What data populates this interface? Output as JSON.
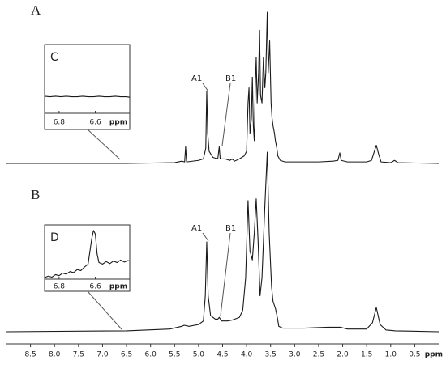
{
  "chart_data": [
    {
      "type": "line",
      "label": "A",
      "annotations": [
        "A1",
        "B1"
      ],
      "color": "#1a1a1a",
      "xlim": [
        9,
        0
      ],
      "ylim": [
        0,
        100
      ],
      "x": [
        9.0,
        6.5,
        5.5,
        5.35,
        5.29,
        5.27,
        5.25,
        5.0,
        4.9,
        4.85,
        4.83,
        4.81,
        4.78,
        4.7,
        4.6,
        4.57,
        4.55,
        4.45,
        4.35,
        4.3,
        4.25,
        4.15,
        4.05,
        4.0,
        3.97,
        3.95,
        3.93,
        3.9,
        3.88,
        3.86,
        3.84,
        3.82,
        3.8,
        3.78,
        3.75,
        3.73,
        3.71,
        3.68,
        3.65,
        3.62,
        3.6,
        3.57,
        3.55,
        3.52,
        3.49,
        3.47,
        3.45,
        3.42,
        3.4,
        3.37,
        3.35,
        3.3,
        3.2,
        2.5,
        2.2,
        2.1,
        2.06,
        2.03,
        1.9,
        1.5,
        1.4,
        1.35,
        1.3,
        1.25,
        1.2,
        1.0,
        0.92,
        0.85,
        0.0
      ],
      "values": [
        0,
        0,
        0.5,
        1.5,
        1,
        11,
        1,
        2,
        3,
        10,
        48,
        20,
        8,
        4,
        3,
        11,
        3,
        3,
        2,
        3,
        1.5,
        3,
        5,
        8,
        40,
        50,
        20,
        30,
        57,
        25,
        15,
        50,
        70,
        40,
        60,
        88,
        45,
        40,
        70,
        50,
        60,
        100,
        60,
        81,
        40,
        30,
        25,
        20,
        15,
        10,
        5,
        2,
        1,
        1,
        1.5,
        2,
        7,
        2,
        1,
        1,
        2,
        7,
        12,
        6,
        1,
        0.5,
        2,
        0.5,
        0
      ]
    },
    {
      "type": "line",
      "label": "B",
      "annotations": [
        "A1",
        "B1"
      ],
      "color": "#1a1a1a",
      "xlim": [
        9,
        0
      ],
      "ylim": [
        0,
        100
      ],
      "xticks": [
        8.5,
        {
          "value": 8,
          "label": "8.0"
        },
        7.5,
        {
          "value": 7,
          "label": "7.0"
        },
        6.5,
        {
          "value": 6,
          "label": "6.0"
        },
        5.5,
        {
          "value": 5,
          "label": "5.0"
        },
        4.5,
        {
          "value": 4,
          "label": "4.0"
        },
        3.5,
        {
          "value": 3,
          "label": "3.0"
        },
        2.5,
        {
          "value": 2,
          "label": "2.0"
        },
        1.5,
        {
          "value": 1,
          "label": "1.0"
        },
        0.5
      ],
      "xlabel": "ppm",
      "x": [
        9.0,
        6.5,
        5.6,
        5.35,
        5.3,
        5.2,
        5.0,
        4.9,
        4.86,
        4.83,
        4.8,
        4.75,
        4.65,
        4.6,
        4.57,
        4.52,
        4.4,
        4.3,
        4.25,
        4.15,
        4.08,
        4.02,
        3.97,
        3.93,
        3.88,
        3.84,
        3.8,
        3.76,
        3.72,
        3.68,
        3.62,
        3.57,
        3.53,
        3.48,
        3.45,
        3.4,
        3.36,
        3.33,
        3.25,
        2.8,
        2.3,
        2.05,
        1.9,
        1.5,
        1.38,
        1.3,
        1.22,
        1.1,
        0.9,
        0.0
      ],
      "values": [
        0,
        0.5,
        1.5,
        3,
        3.6,
        3,
        4,
        6,
        20,
        50,
        20,
        9,
        7,
        7,
        8,
        6,
        6,
        6.5,
        7,
        8,
        12,
        30,
        73,
        45,
        40,
        55,
        74,
        50,
        20,
        30,
        70,
        100,
        55,
        25,
        17,
        13,
        8,
        3,
        2,
        2,
        2.5,
        2.5,
        1.5,
        1.5,
        5,
        13.5,
        4,
        1,
        0.5,
        0
      ]
    },
    {
      "type": "line",
      "label": "C",
      "color": "#1a1a1a",
      "xlim": [
        6.88,
        6.41
      ],
      "ylim": [
        0,
        100
      ],
      "xticks": [
        6.8,
        6.6
      ],
      "xlabel": "ppm",
      "x": [
        6.88,
        6.85,
        6.82,
        6.79,
        6.76,
        6.73,
        6.7,
        6.67,
        6.64,
        6.61,
        6.58,
        6.55,
        6.52,
        6.49,
        6.46,
        6.43,
        6.41
      ],
      "values": [
        34,
        33,
        34,
        33,
        34,
        33,
        33,
        34,
        33,
        33,
        34,
        33,
        33,
        34,
        33,
        33,
        32
      ]
    },
    {
      "type": "line",
      "label": "D",
      "color": "#1a1a1a",
      "xlim": [
        6.88,
        6.41
      ],
      "ylim": [
        0,
        100
      ],
      "xticks": [
        6.8,
        6.6
      ],
      "xlabel": "ppm",
      "x": [
        6.88,
        6.86,
        6.84,
        6.82,
        6.8,
        6.78,
        6.76,
        6.74,
        6.72,
        6.7,
        6.68,
        6.66,
        6.64,
        6.62,
        6.61,
        6.6,
        6.59,
        6.58,
        6.56,
        6.54,
        6.52,
        6.5,
        6.48,
        6.46,
        6.44,
        6.42,
        6.41
      ],
      "values": [
        3,
        6,
        4,
        9,
        7,
        12,
        10,
        15,
        13,
        19,
        17,
        24,
        30,
        80,
        97,
        90,
        50,
        33,
        30,
        35,
        31,
        36,
        33,
        38,
        34,
        37,
        36
      ]
    }
  ]
}
